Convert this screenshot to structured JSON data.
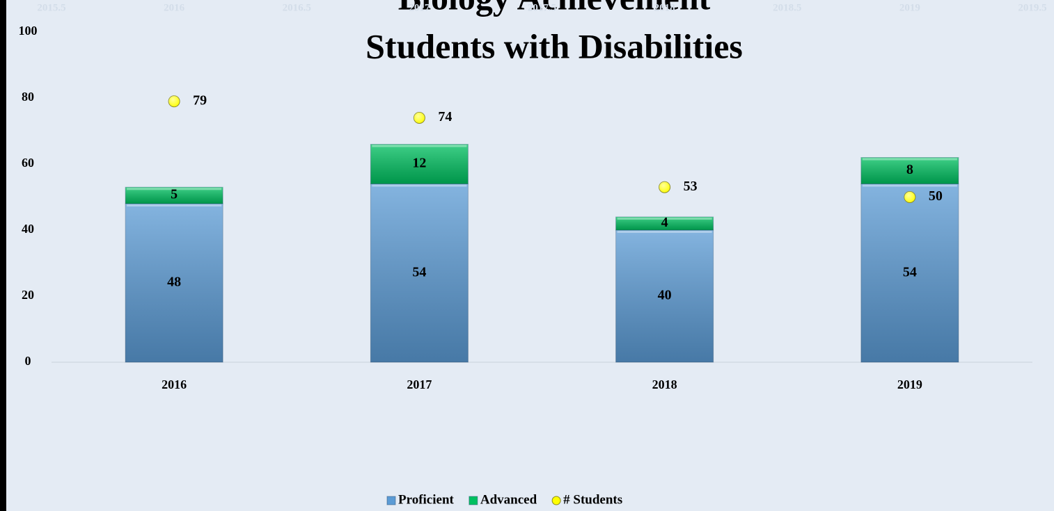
{
  "chart_data": {
    "type": "bar",
    "stacked": true,
    "title": "Biology Achievement",
    "subtitle": "Students with Disabilities",
    "categories": [
      "2016",
      "2017",
      "2018",
      "2019"
    ],
    "series": [
      {
        "name": "Proficient",
        "color": "#5b9bd5",
        "values": [
          48,
          54,
          40,
          54
        ]
      },
      {
        "name": "Advanced",
        "color": "#00c060",
        "values": [
          5,
          12,
          4,
          8
        ]
      },
      {
        "name": "# Students",
        "type": "scatter",
        "color": "#ffff00",
        "axis": "x2",
        "x": [
          2016,
          2017,
          2018,
          2019
        ],
        "values": [
          79,
          74,
          53,
          50
        ]
      }
    ],
    "ylim": [
      0,
      100
    ],
    "yticks": [
      0,
      20,
      40,
      60,
      80,
      100
    ],
    "x2lim": [
      2015.5,
      2019.5
    ],
    "x2ticks": [
      2015.5,
      2016,
      2016.5,
      2017,
      2017.5,
      2018,
      2018.5,
      2019,
      2019.5
    ],
    "legend": "bottom"
  }
}
